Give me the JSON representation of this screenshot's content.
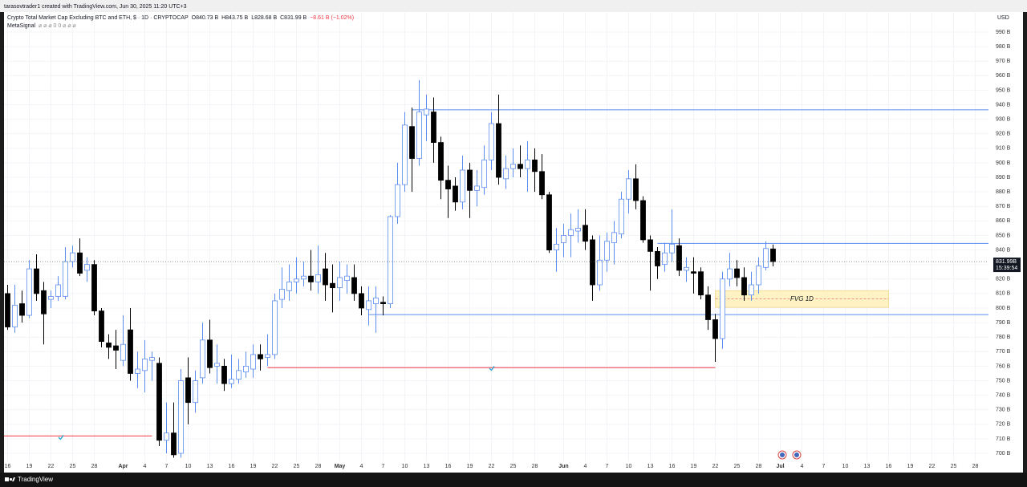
{
  "created_by": "tarasovtrader1 created with TradingView.com, Jun 30, 2025 11:20 UTC+3",
  "chart_data": {
    "type": "candlestick",
    "title": "Crypto Total Market Cap Excluding BTC and ETH, $ · 1D · CRYPTOCAP",
    "ohlc_label": {
      "open": "O840.73 B",
      "high": "H843.75 B",
      "low": "L828.68 B",
      "close": "C831.99 B",
      "change": "−8.61 B (−1.02%)"
    },
    "indicator": {
      "name": "MetaSignal",
      "values": "⌀ ⌀ ⌀ 0 0 ⌀ ⌀ ⌀"
    },
    "currency": "USD",
    "price_label": "831.99B",
    "countdown": "15:39:54",
    "up_color": "#5b8def",
    "down_color": "#000000",
    "hollow": true,
    "grid": true,
    "x": [
      "2025-03-16",
      "2025-03-17",
      "2025-03-18",
      "2025-03-19",
      "2025-03-20",
      "2025-03-21",
      "2025-03-22",
      "2025-03-23",
      "2025-03-24",
      "2025-03-25",
      "2025-03-26",
      "2025-03-27",
      "2025-03-28",
      "2025-03-29",
      "2025-03-30",
      "2025-03-31",
      "2025-04-01",
      "2025-04-02",
      "2025-04-03",
      "2025-04-04",
      "2025-04-05",
      "2025-04-06",
      "2025-04-07",
      "2025-04-08",
      "2025-04-09",
      "2025-04-10",
      "2025-04-11",
      "2025-04-12",
      "2025-04-13",
      "2025-04-14",
      "2025-04-15",
      "2025-04-16",
      "2025-04-17",
      "2025-04-18",
      "2025-04-19",
      "2025-04-20",
      "2025-04-21",
      "2025-04-22",
      "2025-04-23",
      "2025-04-24",
      "2025-04-25",
      "2025-04-26",
      "2025-04-27",
      "2025-04-28",
      "2025-04-29",
      "2025-04-30",
      "2025-05-01",
      "2025-05-02",
      "2025-05-03",
      "2025-05-04",
      "2025-05-05",
      "2025-05-06",
      "2025-05-07",
      "2025-05-08",
      "2025-05-09",
      "2025-05-10",
      "2025-05-11",
      "2025-05-12",
      "2025-05-13",
      "2025-05-14",
      "2025-05-15",
      "2025-05-16",
      "2025-05-17",
      "2025-05-18",
      "2025-05-19",
      "2025-05-20",
      "2025-05-21",
      "2025-05-22",
      "2025-05-23",
      "2025-05-24",
      "2025-05-25",
      "2025-05-26",
      "2025-05-27",
      "2025-05-28",
      "2025-05-29",
      "2025-05-30",
      "2025-05-31",
      "2025-06-01",
      "2025-06-02",
      "2025-06-03",
      "2025-06-04",
      "2025-06-05",
      "2025-06-06",
      "2025-06-07",
      "2025-06-08",
      "2025-06-09",
      "2025-06-10",
      "2025-06-11",
      "2025-06-12",
      "2025-06-13",
      "2025-06-14",
      "2025-06-15",
      "2025-06-16",
      "2025-06-17",
      "2025-06-18",
      "2025-06-19",
      "2025-06-20",
      "2025-06-21",
      "2025-06-22",
      "2025-06-23",
      "2025-06-24",
      "2025-06-25",
      "2025-06-26",
      "2025-06-27",
      "2025-06-28",
      "2025-06-29",
      "2025-06-30"
    ],
    "open": [
      810,
      787,
      803,
      795,
      827,
      812,
      806,
      808,
      808,
      832,
      838,
      826,
      830,
      798,
      776,
      774,
      764,
      785,
      755,
      757,
      764,
      762,
      709,
      714,
      700,
      752,
      735,
      752,
      778,
      760,
      760,
      748,
      751,
      756,
      758,
      768,
      766,
      768,
      806,
      812,
      818,
      820,
      822,
      818,
      827,
      817,
      814,
      819,
      821,
      810,
      799,
      803,
      804,
      803,
      863,
      885,
      925,
      903,
      933,
      935,
      914,
      888,
      884,
      873,
      895,
      881,
      883,
      902,
      927,
      889,
      896,
      899,
      896,
      902,
      894,
      878,
      840,
      845,
      850,
      853,
      857,
      847,
      816,
      833,
      845,
      851,
      875,
      889,
      874,
      847,
      839,
      830,
      838,
      843,
      826,
      825,
      825,
      809,
      792,
      779,
      820,
      827,
      821,
      809,
      816,
      828,
      840.73
    ],
    "high": [
      816,
      816,
      812,
      833,
      837,
      818,
      812,
      822,
      842,
      843,
      848,
      835,
      833,
      800,
      782,
      785,
      795,
      800,
      770,
      778,
      770,
      766,
      735,
      735,
      758,
      766,
      757,
      790,
      792,
      775,
      765,
      768,
      765,
      770,
      775,
      775,
      782,
      810,
      828,
      830,
      835,
      832,
      840,
      843,
      838,
      830,
      832,
      830,
      830,
      815,
      815,
      815,
      808,
      864,
      900,
      935,
      938,
      957,
      947,
      945,
      918,
      898,
      890,
      905,
      900,
      895,
      912,
      935,
      947,
      905,
      910,
      912,
      915,
      910,
      906,
      880,
      855,
      858,
      865,
      868,
      868,
      850,
      850,
      852,
      860,
      880,
      895,
      899,
      877,
      850,
      842,
      845,
      868,
      848,
      835,
      835,
      828,
      815,
      796,
      825,
      838,
      833,
      828,
      825,
      835,
      846,
      843.75
    ],
    "low": [
      785,
      783,
      790,
      793,
      805,
      775,
      800,
      805,
      806,
      828,
      822,
      818,
      795,
      773,
      765,
      758,
      760,
      750,
      745,
      742,
      750,
      705,
      700,
      697,
      697,
      720,
      728,
      748,
      755,
      748,
      743,
      745,
      748,
      752,
      752,
      757,
      760,
      765,
      800,
      805,
      810,
      815,
      812,
      810,
      805,
      797,
      805,
      810,
      805,
      795,
      788,
      783,
      795,
      800,
      858,
      880,
      880,
      898,
      915,
      900,
      875,
      862,
      867,
      868,
      862,
      870,
      878,
      895,
      885,
      882,
      890,
      890,
      880,
      880,
      875,
      838,
      825,
      835,
      835,
      845,
      840,
      805,
      812,
      825,
      830,
      848,
      865,
      868,
      845,
      812,
      820,
      825,
      832,
      822,
      818,
      810,
      806,
      785,
      763,
      772,
      815,
      815,
      805,
      805,
      810,
      826,
      828.68
    ],
    "close": [
      787,
      802,
      795,
      827,
      810,
      796,
      808,
      816,
      832,
      838,
      824,
      830,
      798,
      777,
      773,
      771,
      775,
      755,
      758,
      765,
      766,
      709,
      714,
      699,
      750,
      735,
      750,
      778,
      759,
      762,
      748,
      751,
      757,
      760,
      768,
      765,
      768,
      805,
      813,
      818,
      820,
      822,
      818,
      823,
      816,
      814,
      821,
      822,
      810,
      800,
      805,
      807,
      803,
      863,
      885,
      926,
      903,
      935,
      937,
      914,
      888,
      882,
      873,
      895,
      881,
      884,
      902,
      927,
      890,
      896,
      899,
      896,
      902,
      894,
      878,
      840,
      844,
      850,
      854,
      855,
      846,
      816,
      833,
      846,
      852,
      875,
      889,
      874,
      847,
      839,
      829,
      838,
      844,
      826,
      828,
      824,
      809,
      792,
      779,
      820,
      827,
      821,
      809,
      816,
      829,
      841,
      831.99
    ],
    "xlim": [
      "2025-03-15T12:00:00Z",
      "2025-07-29T20:00:00Z"
    ],
    "ylim": [
      694.5,
      1003.8
    ],
    "xticks": [
      {
        "value": "2025-03-16",
        "label": "16"
      },
      {
        "value": "2025-03-19",
        "label": "19"
      },
      {
        "value": "2025-03-22",
        "label": "22"
      },
      {
        "value": "2025-03-25",
        "label": "25"
      },
      {
        "value": "2025-03-28",
        "label": "28"
      },
      {
        "value": "2025-04-01",
        "label": "Apr"
      },
      {
        "value": "2025-04-04",
        "label": "4"
      },
      {
        "value": "2025-04-07",
        "label": "7"
      },
      {
        "value": "2025-04-10",
        "label": "10"
      },
      {
        "value": "2025-04-13",
        "label": "13"
      },
      {
        "value": "2025-04-16",
        "label": "16"
      },
      {
        "value": "2025-04-19",
        "label": "19"
      },
      {
        "value": "2025-04-22",
        "label": "22"
      },
      {
        "value": "2025-04-25",
        "label": "25"
      },
      {
        "value": "2025-04-28",
        "label": "28"
      },
      {
        "value": "2025-05-01",
        "label": "May"
      },
      {
        "value": "2025-05-04",
        "label": "4"
      },
      {
        "value": "2025-05-07",
        "label": "7"
      },
      {
        "value": "2025-05-10",
        "label": "10"
      },
      {
        "value": "2025-05-13",
        "label": "13"
      },
      {
        "value": "2025-05-16",
        "label": "16"
      },
      {
        "value": "2025-05-19",
        "label": "19"
      },
      {
        "value": "2025-05-22",
        "label": "22"
      },
      {
        "value": "2025-05-25",
        "label": "25"
      },
      {
        "value": "2025-05-28",
        "label": "28"
      },
      {
        "value": "2025-06-01",
        "label": "Jun"
      },
      {
        "value": "2025-06-04",
        "label": "4"
      },
      {
        "value": "2025-06-07",
        "label": "7"
      },
      {
        "value": "2025-06-10",
        "label": "10"
      },
      {
        "value": "2025-06-13",
        "label": "13"
      },
      {
        "value": "2025-06-16",
        "label": "16"
      },
      {
        "value": "2025-06-19",
        "label": "19"
      },
      {
        "value": "2025-06-22",
        "label": "22"
      },
      {
        "value": "2025-06-25",
        "label": "25"
      },
      {
        "value": "2025-06-28",
        "label": "28"
      },
      {
        "value": "2025-07-01",
        "label": "Jul"
      },
      {
        "value": "2025-07-04",
        "label": "4"
      },
      {
        "value": "2025-07-07",
        "label": "7"
      },
      {
        "value": "2025-07-10",
        "label": "10"
      },
      {
        "value": "2025-07-13",
        "label": "13"
      },
      {
        "value": "2025-07-16",
        "label": "16"
      },
      {
        "value": "2025-07-19",
        "label": "19"
      },
      {
        "value": "2025-07-22",
        "label": "22"
      },
      {
        "value": "2025-07-25",
        "label": "25"
      },
      {
        "value": "2025-07-28",
        "label": "28"
      }
    ],
    "yticks": [
      {
        "value": 700,
        "label": "700 B"
      },
      {
        "value": 710,
        "label": "710 B"
      },
      {
        "value": 720,
        "label": "720 B"
      },
      {
        "value": 730,
        "label": "730 B"
      },
      {
        "value": 740,
        "label": "740 B"
      },
      {
        "value": 750,
        "label": "750 B"
      },
      {
        "value": 760,
        "label": "760 B"
      },
      {
        "value": 770,
        "label": "770 B"
      },
      {
        "value": 780,
        "label": "780 B"
      },
      {
        "value": 790,
        "label": "790 B"
      },
      {
        "value": 800,
        "label": "800 B"
      },
      {
        "value": 810,
        "label": "810 B"
      },
      {
        "value": 820,
        "label": "820 B"
      },
      {
        "value": 830,
        "label": "830 B"
      },
      {
        "value": 840,
        "label": "840 B"
      },
      {
        "value": 850,
        "label": "850 B"
      },
      {
        "value": 860,
        "label": "860 B"
      },
      {
        "value": 870,
        "label": "870 B"
      },
      {
        "value": 880,
        "label": "880 B"
      },
      {
        "value": 890,
        "label": "890 B"
      },
      {
        "value": 900,
        "label": "900 B"
      },
      {
        "value": 910,
        "label": "910 B"
      },
      {
        "value": 920,
        "label": "920 B"
      },
      {
        "value": 930,
        "label": "930 B"
      },
      {
        "value": 940,
        "label": "940 B"
      },
      {
        "value": 950,
        "label": "950 B"
      },
      {
        "value": 960,
        "label": "960 B"
      },
      {
        "value": 970,
        "label": "970 B"
      },
      {
        "value": 980,
        "label": "980 B"
      },
      {
        "value": 990,
        "label": "990 B"
      }
    ],
    "hlines": [
      {
        "value": 936.5,
        "from": "2025-05-11",
        "to": "2025-07-29T20:00:00Z",
        "color": "#5b8def"
      },
      {
        "value": 844.5,
        "from": "2025-06-14",
        "to": "2025-07-29T20:00:00Z",
        "color": "#5b8def"
      },
      {
        "value": 795.5,
        "from": "2025-05-05",
        "to": "2025-07-29T20:00:00Z",
        "color": "#5b8def"
      },
      {
        "value": 759,
        "from": "2025-04-21",
        "to": "2025-06-22",
        "color": "#f23645"
      },
      {
        "value": 712,
        "from": "2025-03-15T12:00:00Z",
        "to": "2025-04-05",
        "color": "#f23645"
      }
    ],
    "zones": [
      {
        "label": "FVG 1D",
        "low": 800.5,
        "high": 812,
        "from": "2025-06-22",
        "to": "2025-07-16",
        "color": "#fff3c4"
      }
    ]
  },
  "footer": "TradingView"
}
